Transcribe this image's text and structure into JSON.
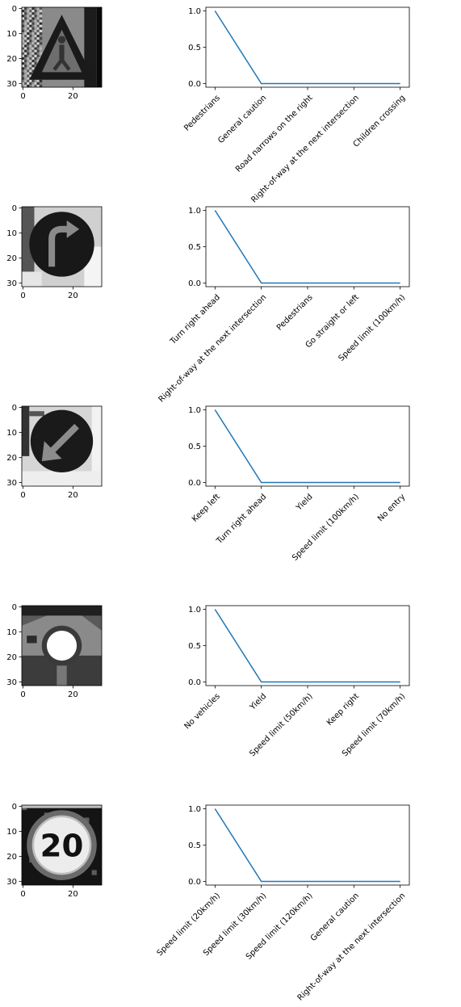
{
  "figure": {
    "line_color": "#1f77b4",
    "image_axis": {
      "x_ticks": [
        0,
        20
      ],
      "y_ticks": [
        0,
        10,
        20,
        30
      ],
      "x_range": [
        -0.5,
        31.5
      ],
      "y_range": [
        -0.5,
        31.5
      ]
    }
  },
  "chart_data": [
    {
      "type": "line",
      "image_sign": "pedestrians-triangle",
      "categories": [
        "Pedestrians",
        "General caution",
        "Road narrows on the right",
        "Right-of-way at the next intersection",
        "Children crossing"
      ],
      "values": [
        1.0,
        0.0,
        0.0,
        0.0,
        0.0
      ],
      "yticks": [
        0.0,
        0.5,
        1.0
      ],
      "ylim": [
        -0.05,
        1.05
      ],
      "grid": false
    },
    {
      "type": "line",
      "image_sign": "turn-right-arrow",
      "categories": [
        "Turn right ahead",
        "Right-of-way at the next intersection",
        "Pedestrians",
        "Go straight or left",
        "Speed limit (100km/h)"
      ],
      "values": [
        1.0,
        0.0,
        0.0,
        0.0,
        0.0
      ],
      "yticks": [
        0.0,
        0.5,
        1.0
      ],
      "ylim": [
        -0.05,
        1.05
      ],
      "grid": false
    },
    {
      "type": "line",
      "image_sign": "keep-left-arrow",
      "categories": [
        "Keep left",
        "Turn right ahead",
        "Yield",
        "Speed limit (100km/h)",
        "No entry"
      ],
      "values": [
        1.0,
        0.0,
        0.0,
        0.0,
        0.0
      ],
      "yticks": [
        0.0,
        0.5,
        1.0
      ],
      "ylim": [
        -0.05,
        1.05
      ],
      "grid": false
    },
    {
      "type": "line",
      "image_sign": "no-vehicles-circle",
      "categories": [
        "No vehicles",
        "Yield",
        "Speed limit (50km/h)",
        "Keep right",
        "Speed limit (70km/h)"
      ],
      "values": [
        1.0,
        0.0,
        0.0,
        0.0,
        0.0
      ],
      "yticks": [
        0.0,
        0.5,
        1.0
      ],
      "ylim": [
        -0.05,
        1.05
      ],
      "grid": false
    },
    {
      "type": "line",
      "image_sign": "speed-limit-20",
      "image_text": "20",
      "categories": [
        "Speed limit (20km/h)",
        "Speed limit (30km/h)",
        "Speed limit (120km/h)",
        "General caution",
        "Right-of-way at the next intersection"
      ],
      "values": [
        1.0,
        0.0,
        0.0,
        0.0,
        0.0
      ],
      "yticks": [
        0.0,
        0.5,
        1.0
      ],
      "ylim": [
        -0.05,
        1.05
      ],
      "grid": false
    }
  ]
}
